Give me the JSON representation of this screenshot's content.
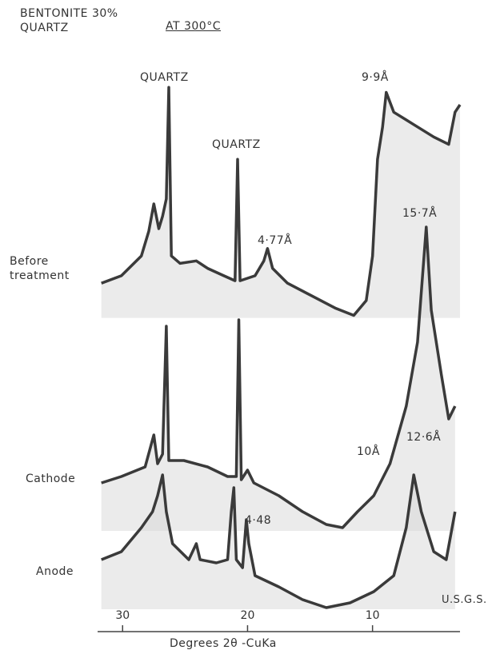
{
  "chart_data": {
    "type": "line",
    "title": "BENTONITE 30% QUARTZ",
    "subtitle": "AT 300°C",
    "source": "U.S.G.S.",
    "x_label": "Degrees 2θ -CuKa",
    "xlim": [
      32,
      3
    ],
    "xticks": [
      30,
      20,
      10
    ],
    "ylim": [
      0,
      100
    ],
    "annotations": [
      "QUARTZ",
      "QUARTZ",
      "9·9Å",
      "4·77Å",
      "15·7Å",
      "10Å",
      "12·6Å",
      "4·48"
    ],
    "series": [
      {
        "name": "Before treatment",
        "color": "#3a3a3a",
        "x": [
          31.7,
          30.1,
          28.5,
          27.9,
          27.5,
          27.1,
          26.8,
          26.5,
          26.3,
          26.1,
          25.4,
          24.1,
          23.2,
          21.9,
          21.0,
          20.8,
          20.6,
          19.4,
          18.7,
          18.4,
          18.0,
          16.8,
          14.9,
          13.0,
          11.5,
          10.5,
          10.0,
          9.6,
          9.2,
          8.9,
          8.3,
          6.7,
          5.1,
          3.9,
          3.4,
          3.0
        ],
        "values": [
          18,
          21,
          29,
          39,
          50,
          40,
          45,
          52,
          97,
          29,
          26,
          27,
          24,
          21,
          19,
          68,
          19,
          21,
          27,
          32,
          24,
          18,
          13,
          8,
          5,
          11,
          29,
          68,
          81,
          95,
          87,
          82,
          77,
          74,
          87,
          90
        ]
      },
      {
        "name": "Cathode",
        "color": "#3a3a3a",
        "x": [
          31.7,
          30.1,
          28.2,
          27.5,
          27.2,
          26.8,
          26.5,
          26.3,
          25.1,
          23.2,
          21.6,
          20.9,
          20.7,
          20.5,
          20.0,
          19.5,
          17.5,
          15.6,
          13.7,
          12.4,
          11.2,
          9.9,
          8.6,
          7.3,
          6.4,
          5.7,
          5.3,
          4.5,
          3.9,
          3.4
        ],
        "values": [
          19,
          21,
          24,
          34,
          25,
          28,
          68,
          26,
          26,
          24,
          21,
          21,
          70,
          20,
          23,
          19,
          15,
          10,
          6,
          5,
          10,
          15,
          25,
          43,
          63,
          99,
          73,
          53,
          39,
          43
        ]
      },
      {
        "name": "Anode",
        "color": "#3a3a3a",
        "x": [
          31.7,
          30.1,
          28.5,
          27.6,
          27.2,
          26.8,
          26.5,
          26.0,
          24.7,
          24.1,
          23.8,
          22.5,
          21.6,
          21.3,
          21.1,
          20.9,
          20.4,
          20.1,
          19.9,
          19.4,
          17.5,
          15.6,
          13.7,
          11.8,
          9.9,
          8.3,
          7.3,
          6.7,
          6.1,
          5.1,
          4.1,
          3.4
        ],
        "values": [
          35,
          40,
          55,
          65,
          75,
          88,
          65,
          45,
          35,
          45,
          35,
          33,
          35,
          65,
          80,
          35,
          30,
          60,
          45,
          25,
          18,
          10,
          5,
          8,
          15,
          25,
          55,
          88,
          65,
          40,
          35,
          65
        ]
      }
    ]
  }
}
